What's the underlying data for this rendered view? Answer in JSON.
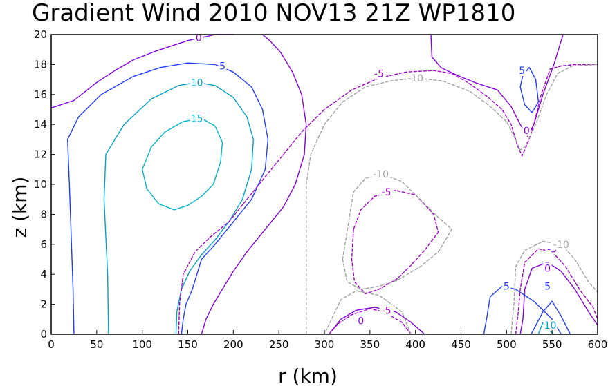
{
  "chart_data": {
    "type": "contour",
    "title": "Gradient Wind 2010 NOV13 21Z   WP1810",
    "xlabel": "r (km)",
    "ylabel": "z (km)",
    "xlim": [
      0,
      600
    ],
    "ylim": [
      0,
      20
    ],
    "xticks": [
      0,
      50,
      100,
      150,
      200,
      250,
      300,
      350,
      400,
      450,
      500,
      550,
      600
    ],
    "yticks": [
      0,
      2,
      4,
      6,
      8,
      10,
      12,
      14,
      16,
      18,
      20
    ],
    "colors": {
      "-10": "#a0a0a0",
      "-5": "#a000c8",
      "0": "#8200dc",
      "5": "#1e3cff",
      "10": "#00a0c8",
      "15": "#00b4c8"
    },
    "contours": [
      {
        "level": 0,
        "label": "0",
        "dashed": false,
        "points": [
          [
            0,
            15.1
          ],
          [
            25,
            15.6
          ],
          [
            50,
            16.8
          ],
          [
            70,
            17.6
          ],
          [
            90,
            18.3
          ],
          [
            115,
            18.9
          ],
          [
            135,
            19.3
          ],
          [
            150,
            19.6
          ],
          [
            165,
            19.8
          ],
          [
            180,
            20
          ],
          [
            200,
            20
          ]
        ],
        "label_at": [
          162,
          19.8
        ]
      },
      {
        "level": 0,
        "label": "0",
        "dashed": false,
        "points": [
          [
            232,
            20
          ],
          [
            240,
            19.6
          ],
          [
            252,
            18.8
          ],
          [
            265,
            17.5
          ],
          [
            275,
            16
          ],
          [
            280,
            14
          ],
          [
            278,
            12
          ],
          [
            268,
            10
          ],
          [
            255,
            8.5
          ],
          [
            235,
            7
          ],
          [
            215,
            5.5
          ],
          [
            200,
            4.2
          ],
          [
            188,
            3
          ],
          [
            178,
            2
          ],
          [
            170,
            1
          ],
          [
            165,
            0
          ]
        ]
      },
      {
        "level": 0,
        "label": "0",
        "dashed": false,
        "points": [
          [
            410,
            0
          ],
          [
            395,
            0.8
          ],
          [
            378,
            1.5
          ],
          [
            355,
            1.8
          ],
          [
            335,
            1.6
          ],
          [
            318,
            1
          ],
          [
            305,
            0
          ]
        ],
        "label_at": [
          340,
          0.9
        ]
      },
      {
        "level": 0,
        "label": "0",
        "dashed": false,
        "points": [
          [
            515,
            0
          ],
          [
            518,
            1
          ],
          [
            520,
            3
          ],
          [
            528,
            4.4
          ],
          [
            545,
            4.8
          ],
          [
            560,
            4.2
          ],
          [
            575,
            3
          ],
          [
            590,
            1.5
          ],
          [
            600,
            0.6
          ]
        ],
        "label_at": [
          545,
          4.4
        ]
      },
      {
        "level": 0,
        "label": "0",
        "dashed": false,
        "points": [
          [
            417,
            20
          ],
          [
            418,
            18.5
          ],
          [
            428,
            17.8
          ],
          [
            445,
            17.3
          ],
          [
            465,
            16.8
          ],
          [
            490,
            16.3
          ],
          [
            505,
            15.2
          ],
          [
            515,
            14
          ],
          [
            523,
            13.2
          ],
          [
            530,
            14
          ],
          [
            540,
            16
          ],
          [
            552,
            18
          ],
          [
            562,
            20
          ]
        ],
        "label_at": [
          522,
          13.6
        ]
      },
      {
        "level": 5,
        "label": "5",
        "dashed": false,
        "points": [
          [
            25,
            0
          ],
          [
            24,
            3
          ],
          [
            20,
            10
          ],
          [
            18,
            13
          ],
          [
            30,
            14.5
          ],
          [
            55,
            16
          ],
          [
            90,
            17.2
          ],
          [
            120,
            17.8
          ],
          [
            150,
            18.1
          ],
          [
            180,
            18
          ],
          [
            200,
            17.5
          ],
          [
            220,
            16.5
          ],
          [
            232,
            15
          ],
          [
            238,
            13
          ],
          [
            235,
            11
          ],
          [
            220,
            9
          ],
          [
            200,
            7.5
          ],
          [
            180,
            6
          ],
          [
            165,
            5
          ],
          [
            160,
            4
          ],
          [
            155,
            3
          ],
          [
            148,
            2
          ],
          [
            145,
            1
          ],
          [
            143,
            0
          ]
        ],
        "label_at": [
          188,
          17.9
        ]
      },
      {
        "level": 5,
        "label": "5",
        "dashed": false,
        "points": [
          [
            475,
            0
          ],
          [
            478,
            1
          ],
          [
            482,
            2.5
          ],
          [
            495,
            3.2
          ],
          [
            510,
            3
          ],
          [
            530,
            2.2
          ],
          [
            550,
            1
          ],
          [
            560,
            0
          ]
        ],
        "label_at": [
          500,
          3.2
        ]
      },
      {
        "level": 5,
        "label": "5",
        "dashed": false,
        "points": [
          [
            527,
            0
          ],
          [
            540,
            1.5
          ],
          [
            550,
            2.2
          ],
          [
            560,
            1.2
          ],
          [
            570,
            0
          ]
        ],
        "label_at": [
          545,
          3.2
        ]
      },
      {
        "level": 5,
        "label": "5",
        "dashed": false,
        "points": [
          [
            515,
            16.5
          ],
          [
            518,
            17.3
          ],
          [
            525,
            17.8
          ],
          [
            532,
            17
          ],
          [
            535,
            15.5
          ],
          [
            528,
            14.8
          ],
          [
            520,
            15.3
          ],
          [
            515,
            16.5
          ]
        ],
        "label_at": [
          517,
          17.6
        ]
      },
      {
        "level": 10,
        "label": "10",
        "dashed": false,
        "points": [
          [
            63,
            0
          ],
          [
            62,
            4
          ],
          [
            58,
            9
          ],
          [
            60,
            12
          ],
          [
            80,
            14
          ],
          [
            110,
            15.7
          ],
          [
            140,
            16.6
          ],
          [
            160,
            16.8
          ],
          [
            180,
            16.6
          ],
          [
            200,
            15.8
          ],
          [
            215,
            14.5
          ],
          [
            222,
            13
          ],
          [
            220,
            11
          ],
          [
            210,
            9
          ],
          [
            195,
            7.5
          ],
          [
            180,
            6.3
          ],
          [
            165,
            5.3
          ],
          [
            152,
            4.2
          ],
          [
            143,
            3
          ],
          [
            138,
            1.5
          ],
          [
            137,
            0
          ]
        ],
        "label_at": [
          160,
          16.8
        ]
      },
      {
        "level": 10,
        "label": "10",
        "dashed": false,
        "points": [
          [
            535,
            0
          ],
          [
            540,
            0.8
          ],
          [
            548,
            0.2
          ],
          [
            552,
            0
          ]
        ],
        "label_at": [
          548,
          0.6
        ]
      },
      {
        "level": 15,
        "label": "15",
        "dashed": false,
        "points": [
          [
            100,
            11
          ],
          [
            110,
            12.5
          ],
          [
            125,
            13.5
          ],
          [
            145,
            14.2
          ],
          [
            165,
            14.4
          ],
          [
            180,
            13.9
          ],
          [
            188,
            12.8
          ],
          [
            186,
            11.5
          ],
          [
            178,
            10
          ],
          [
            165,
            9.2
          ],
          [
            150,
            8.6
          ],
          [
            135,
            8.3
          ],
          [
            118,
            8.7
          ],
          [
            105,
            9.7
          ],
          [
            100,
            11
          ]
        ],
        "label_at": [
          160,
          14.4
        ]
      },
      {
        "level": -5,
        "label": "-5",
        "dashed": true,
        "points": [
          [
            140,
            0
          ],
          [
            141,
            2
          ],
          [
            145,
            4
          ],
          [
            158,
            5.5
          ],
          [
            175,
            6.5
          ],
          [
            195,
            7.5
          ],
          [
            215,
            9
          ],
          [
            235,
            10.5
          ],
          [
            255,
            12
          ],
          [
            275,
            13.5
          ],
          [
            300,
            15
          ],
          [
            330,
            16.3
          ],
          [
            360,
            17.1
          ],
          [
            390,
            17.5
          ],
          [
            420,
            17.6
          ],
          [
            440,
            17.4
          ],
          [
            460,
            16.7
          ],
          [
            480,
            15.8
          ],
          [
            495,
            15
          ],
          [
            505,
            14
          ],
          [
            512,
            12.6
          ],
          [
            517,
            11.9
          ],
          [
            523,
            12.7
          ],
          [
            530,
            14
          ],
          [
            538,
            16
          ],
          [
            548,
            17.7
          ],
          [
            560,
            17.9
          ],
          [
            575,
            18
          ],
          [
            600,
            18
          ]
        ],
        "label_at": [
          360,
          17.4
        ]
      },
      {
        "level": -5,
        "label": "-5",
        "dashed": true,
        "points": [
          [
            332,
            7
          ],
          [
            330,
            5
          ],
          [
            333,
            3.5
          ],
          [
            345,
            2.7
          ],
          [
            360,
            3
          ],
          [
            380,
            3.7
          ],
          [
            395,
            4.6
          ],
          [
            410,
            5.6
          ],
          [
            425,
            6.8
          ],
          [
            420,
            8
          ],
          [
            400,
            9.3
          ],
          [
            378,
            9.6
          ],
          [
            355,
            9.2
          ],
          [
            340,
            8.3
          ],
          [
            332,
            7
          ]
        ],
        "label_at": [
          368,
          9.5
        ]
      },
      {
        "level": -5,
        "label": "-5",
        "dashed": true,
        "points": [
          [
            305,
            0
          ],
          [
            315,
            0.7
          ],
          [
            330,
            1.3
          ],
          [
            350,
            1.7
          ],
          [
            365,
            1.5
          ],
          [
            385,
            0.8
          ],
          [
            395,
            0
          ]
        ],
        "label_at": [
          368,
          1.6
        ]
      },
      {
        "level": -5,
        "label": "-5",
        "dashed": true,
        "points": [
          [
            510,
            0
          ],
          [
            513,
            1.5
          ],
          [
            515,
            3
          ],
          [
            520,
            4.8
          ],
          [
            535,
            5.7
          ],
          [
            550,
            5.5
          ],
          [
            565,
            4.5
          ],
          [
            580,
            3
          ],
          [
            595,
            1.8
          ],
          [
            600,
            1
          ]
        ],
        "label_at": [
          550,
          5.7
        ]
      },
      {
        "level": -10,
        "label": "-10",
        "dashed": true,
        "points": [
          [
            280,
            0
          ],
          [
            280,
            10
          ],
          [
            285,
            12
          ],
          [
            300,
            14
          ],
          [
            320,
            15.5
          ],
          [
            345,
            16.5
          ],
          [
            372,
            16.9
          ],
          [
            400,
            17.1
          ],
          [
            430,
            16.9
          ],
          [
            460,
            16.2
          ],
          [
            480,
            15.3
          ],
          [
            500,
            14.2
          ],
          [
            510,
            13
          ],
          [
            515,
            12.3
          ],
          [
            520,
            12.5
          ],
          [
            532,
            14
          ],
          [
            544,
            16
          ],
          [
            556,
            17.4
          ],
          [
            572,
            17.9
          ],
          [
            600,
            18
          ]
        ],
        "label_at": [
          400,
          17.1
        ]
      },
      {
        "level": -10,
        "label": "-10",
        "dashed": true,
        "points": [
          [
            320,
            5
          ],
          [
            332,
            9.5
          ],
          [
            345,
            10.4
          ],
          [
            362,
            10.7
          ],
          [
            385,
            10.2
          ],
          [
            405,
            9
          ],
          [
            425,
            7.8
          ],
          [
            440,
            7
          ],
          [
            425,
            5.5
          ],
          [
            405,
            4.5
          ],
          [
            380,
            3.6
          ],
          [
            360,
            3.2
          ],
          [
            340,
            3
          ],
          [
            325,
            3.5
          ],
          [
            320,
            5
          ]
        ],
        "label_at": [
          362,
          10.7
        ]
      },
      {
        "level": -10,
        "label": "-10",
        "dashed": true,
        "points": [
          [
            395,
            0
          ],
          [
            385,
            1.5
          ],
          [
            360,
            2.6
          ],
          [
            335,
            2.9
          ],
          [
            318,
            2.3
          ],
          [
            300,
            0
          ]
        ]
      },
      {
        "level": -10,
        "label": "-10",
        "dashed": true,
        "points": [
          [
            505,
            0
          ],
          [
            508,
            2
          ],
          [
            510,
            4.5
          ],
          [
            520,
            5.6
          ],
          [
            540,
            6.2
          ],
          [
            560,
            6
          ],
          [
            575,
            5
          ],
          [
            590,
            3.5
          ],
          [
            600,
            2.8
          ]
        ],
        "label_at": [
          560,
          6
        ]
      }
    ]
  }
}
